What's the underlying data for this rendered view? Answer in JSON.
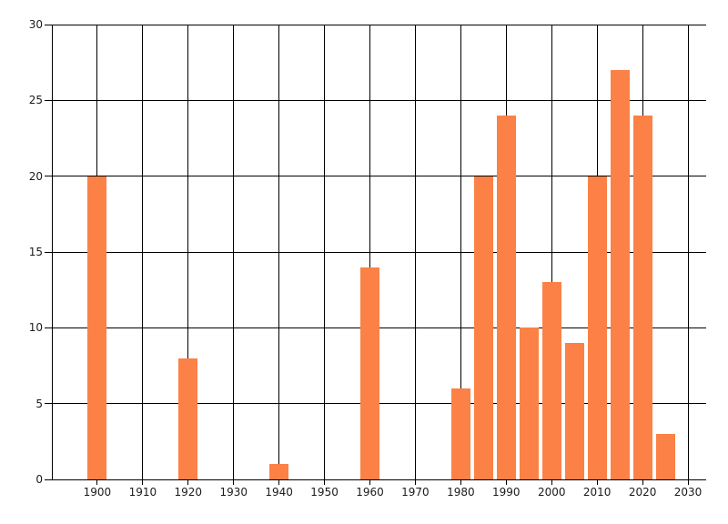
{
  "chart_data": {
    "type": "bar",
    "x": [
      1900,
      1920,
      1940,
      1960,
      1980,
      1985,
      1990,
      1995,
      2000,
      2005,
      2010,
      2015,
      2020,
      2025
    ],
    "values": [
      20,
      8,
      1,
      14,
      6,
      20,
      24,
      10,
      13,
      9,
      20,
      27,
      24,
      3
    ],
    "bar_width_x": 4.2,
    "xlim": [
      1890,
      2034
    ],
    "ylim": [
      0,
      30
    ],
    "x_tick_labels": [
      "1900",
      "1910",
      "1920",
      "1930",
      "1940",
      "1950",
      "1960",
      "1970",
      "1980",
      "1990",
      "2000",
      "2010",
      "2020",
      "2030"
    ],
    "y_tick_labels": [
      "0",
      "5",
      "10",
      "15",
      "20",
      "25",
      "30"
    ],
    "grid": true,
    "legend": "none",
    "colors": {
      "bar": "#fc8146",
      "grid": "#000000",
      "axis": "#000000",
      "text": "#1b1b1b",
      "background": "#ffffff"
    }
  }
}
